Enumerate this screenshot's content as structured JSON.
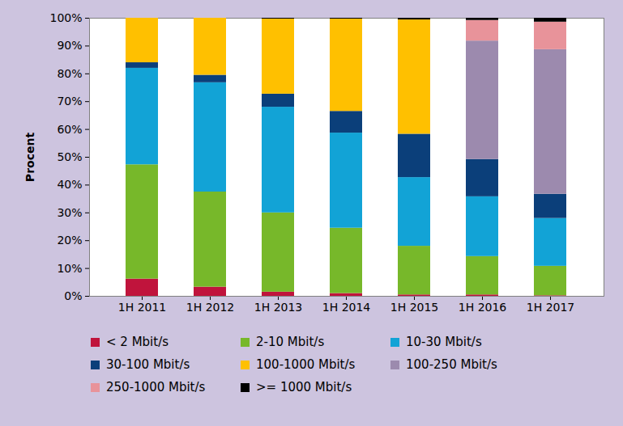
{
  "chart_data": {
    "type": "bar",
    "stacked": true,
    "y_label": "Procent",
    "categories": [
      "1H 2011",
      "1H 2012",
      "1H 2013",
      "1H 2014",
      "1H 2015",
      "1H 2016",
      "1H 2017"
    ],
    "series": [
      {
        "name": "< 2 Mbit/s",
        "color": "#c0143c",
        "values": [
          6.2,
          3.3,
          1.5,
          1.0,
          0.5,
          0.5,
          0.2
        ]
      },
      {
        "name": "2-10 Mbit/s",
        "color": "#77b82a",
        "values": [
          41.1,
          34.2,
          28.5,
          23.5,
          17.5,
          13.8,
          10.6
        ]
      },
      {
        "name": "10-30 Mbit/s",
        "color": "#12a3d6",
        "values": [
          34.7,
          39.3,
          38.0,
          34.2,
          24.7,
          21.5,
          17.2
        ]
      },
      {
        "name": "30-100 Mbit/s",
        "color": "#0b3f7a",
        "values": [
          2.0,
          2.7,
          4.7,
          7.8,
          15.6,
          13.4,
          8.7
        ]
      },
      {
        "name": "100-1000 Mbit/s",
        "color": "#ffc000",
        "values": [
          16.0,
          20.5,
          27.0,
          33.2,
          41.1,
          0,
          0
        ]
      },
      {
        "name": "100-250 Mbit/s",
        "color": "#9c8aae",
        "values": [
          0,
          0,
          0,
          0,
          0,
          42.6,
          52.0
        ]
      },
      {
        "name": "250-1000 Mbit/s",
        "color": "#e8939a",
        "values": [
          0,
          0,
          0,
          0,
          0,
          7.4,
          9.9
        ]
      },
      {
        "name": ">= 1000 Mbit/s",
        "color": "#000000",
        "values": [
          0,
          0,
          0.3,
          0.3,
          0.6,
          0.8,
          1.4
        ]
      }
    ],
    "ylim": [
      0,
      100
    ],
    "yticks": [
      {
        "value": 0,
        "label": "0%"
      },
      {
        "value": 10,
        "label": "10%"
      },
      {
        "value": 20,
        "label": "20%"
      },
      {
        "value": 30,
        "label": "30%"
      },
      {
        "value": 40,
        "label": "40%"
      },
      {
        "value": 50,
        "label": "50%"
      },
      {
        "value": 60,
        "label": "60%"
      },
      {
        "value": 70,
        "label": "70%"
      },
      {
        "value": 80,
        "label": "80%"
      },
      {
        "value": 90,
        "label": "90%"
      },
      {
        "value": 100,
        "label": "100%"
      }
    ],
    "grid": false,
    "legend": "bottom"
  }
}
